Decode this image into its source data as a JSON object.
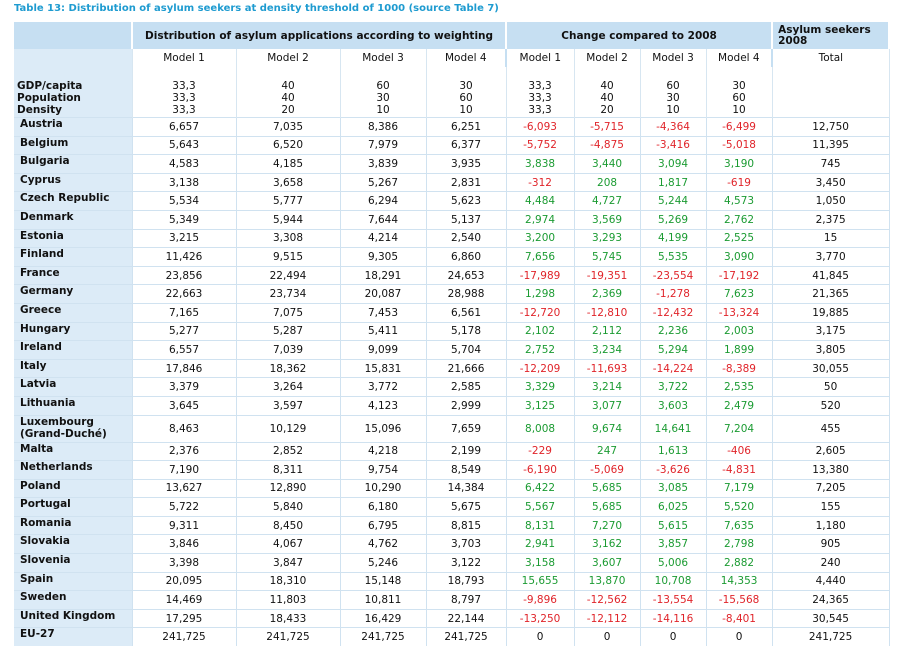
{
  "title": "Table 13: Distribution of asylum seekers at density threshold of 1000 (source Table 7)",
  "header_groups": {
    "distribution": "Distribution of asylum applications according to weighting",
    "change": "Change compared to 2008",
    "asylum": "Asylum seekers 2008"
  },
  "sub_headers": [
    "Model 1",
    "Model 2",
    "Model 3",
    "Model 4",
    "Model 1",
    "Model 2",
    "Model 3",
    "Model 4",
    "Total"
  ],
  "weights": {
    "labels": [
      "GDP/capita",
      "Population",
      "Density"
    ],
    "model1": [
      "33,3",
      "33,3",
      "33,3"
    ],
    "model2": [
      "40",
      "40",
      "20"
    ],
    "model3": [
      "60",
      "30",
      "10"
    ],
    "model4": [
      "30",
      "60",
      "10"
    ]
  },
  "rows": [
    {
      "country": "Austria",
      "dist": [
        "6,657",
        "7,035",
        "8,386",
        "6,251"
      ],
      "change": [
        "-6,093",
        "-5,715",
        "-4,364",
        "-6,499"
      ],
      "total": "12,750"
    },
    {
      "country": "Belgium",
      "dist": [
        "5,643",
        "6,520",
        "7,979",
        "6,377"
      ],
      "change": [
        "-5,752",
        "-4,875",
        "-3,416",
        "-5,018"
      ],
      "total": "11,395"
    },
    {
      "country": "Bulgaria",
      "dist": [
        "4,583",
        "4,185",
        "3,839",
        "3,935"
      ],
      "change": [
        "3,838",
        "3,440",
        "3,094",
        "3,190"
      ],
      "total": "745"
    },
    {
      "country": "Cyprus",
      "dist": [
        "3,138",
        "3,658",
        "5,267",
        "2,831"
      ],
      "change": [
        "-312",
        "208",
        "1,817",
        "-619"
      ],
      "total": "3,450"
    },
    {
      "country": "Czech Republic",
      "dist": [
        "5,534",
        "5,777",
        "6,294",
        "5,623"
      ],
      "change": [
        "4,484",
        "4,727",
        "5,244",
        "4,573"
      ],
      "total": "1,050"
    },
    {
      "country": "Denmark",
      "dist": [
        "5,349",
        "5,944",
        "7,644",
        "5,137"
      ],
      "change": [
        "2,974",
        "3,569",
        "5,269",
        "2,762"
      ],
      "total": "2,375"
    },
    {
      "country": "Estonia",
      "dist": [
        "3,215",
        "3,308",
        "4,214",
        "2,540"
      ],
      "change": [
        "3,200",
        "3,293",
        "4,199",
        "2,525"
      ],
      "total": "15"
    },
    {
      "country": "Finland",
      "dist": [
        "11,426",
        "9,515",
        "9,305",
        "6,860"
      ],
      "change": [
        "7,656",
        "5,745",
        "5,535",
        "3,090"
      ],
      "total": "3,770"
    },
    {
      "country": "France",
      "dist": [
        "23,856",
        "22,494",
        "18,291",
        "24,653"
      ],
      "change": [
        "-17,989",
        "-19,351",
        "-23,554",
        "-17,192"
      ],
      "total": "41,845"
    },
    {
      "country": "Germany",
      "dist": [
        "22,663",
        "23,734",
        "20,087",
        "28,988"
      ],
      "change": [
        "1,298",
        "2,369",
        "-1,278",
        "7,623"
      ],
      "total": "21,365"
    },
    {
      "country": "Greece",
      "dist": [
        "7,165",
        "7,075",
        "7,453",
        "6,561"
      ],
      "change": [
        "-12,720",
        "-12,810",
        "-12,432",
        "-13,324"
      ],
      "total": "19,885"
    },
    {
      "country": "Hungary",
      "dist": [
        "5,277",
        "5,287",
        "5,411",
        "5,178"
      ],
      "change": [
        "2,102",
        "2,112",
        "2,236",
        "2,003"
      ],
      "total": "3,175"
    },
    {
      "country": "Ireland",
      "dist": [
        "6,557",
        "7,039",
        "9,099",
        "5,704"
      ],
      "change": [
        "2,752",
        "3,234",
        "5,294",
        "1,899"
      ],
      "total": "3,805"
    },
    {
      "country": "Italy",
      "dist": [
        "17,846",
        "18,362",
        "15,831",
        "21,666"
      ],
      "change": [
        "-12,209",
        "-11,693",
        "-14,224",
        "-8,389"
      ],
      "total": "30,055"
    },
    {
      "country": "Latvia",
      "dist": [
        "3,379",
        "3,264",
        "3,772",
        "2,585"
      ],
      "change": [
        "3,329",
        "3,214",
        "3,722",
        "2,535"
      ],
      "total": "50"
    },
    {
      "country": "Lithuania",
      "dist": [
        "3,645",
        "3,597",
        "4,123",
        "2,999"
      ],
      "change": [
        "3,125",
        "3,077",
        "3,603",
        "2,479"
      ],
      "total": "520"
    },
    {
      "country": "Luxembourg (Grand-Duché)",
      "dist": [
        "8,463",
        "10,129",
        "15,096",
        "7,659"
      ],
      "change": [
        "8,008",
        "9,674",
        "14,641",
        "7,204"
      ],
      "total": "455"
    },
    {
      "country": "Malta",
      "dist": [
        "2,376",
        "2,852",
        "4,218",
        "2,199"
      ],
      "change": [
        "-229",
        "247",
        "1,613",
        "-406"
      ],
      "total": "2,605"
    },
    {
      "country": "Netherlands",
      "dist": [
        "7,190",
        "8,311",
        "9,754",
        "8,549"
      ],
      "change": [
        "-6,190",
        "-5,069",
        "-3,626",
        "-4,831"
      ],
      "total": "13,380"
    },
    {
      "country": "Poland",
      "dist": [
        "13,627",
        "12,890",
        "10,290",
        "14,384"
      ],
      "change": [
        "6,422",
        "5,685",
        "3,085",
        "7,179"
      ],
      "total": "7,205"
    },
    {
      "country": "Portugal",
      "dist": [
        "5,722",
        "5,840",
        "6,180",
        "5,675"
      ],
      "change": [
        "5,567",
        "5,685",
        "6,025",
        "5,520"
      ],
      "total": "155"
    },
    {
      "country": "Romania",
      "dist": [
        "9,311",
        "8,450",
        "6,795",
        "8,815"
      ],
      "change": [
        "8,131",
        "7,270",
        "5,615",
        "7,635"
      ],
      "total": "1,180"
    },
    {
      "country": "Slovakia",
      "dist": [
        "3,846",
        "4,067",
        "4,762",
        "3,703"
      ],
      "change": [
        "2,941",
        "3,162",
        "3,857",
        "2,798"
      ],
      "total": "905"
    },
    {
      "country": "Slovenia",
      "dist": [
        "3,398",
        "3,847",
        "5,246",
        "3,122"
      ],
      "change": [
        "3,158",
        "3,607",
        "5,006",
        "2,882"
      ],
      "total": "240"
    },
    {
      "country": "Spain",
      "dist": [
        "20,095",
        "18,310",
        "15,148",
        "18,793"
      ],
      "change": [
        "15,655",
        "13,870",
        "10,708",
        "14,353"
      ],
      "total": "4,440"
    },
    {
      "country": "Sweden",
      "dist": [
        "14,469",
        "11,803",
        "10,811",
        "8,797"
      ],
      "change": [
        "-9,896",
        "-12,562",
        "-13,554",
        "-15,568"
      ],
      "total": "24,365"
    },
    {
      "country": "United Kingdom",
      "dist": [
        "17,295",
        "18,433",
        "16,429",
        "22,144"
      ],
      "change": [
        "-13,250",
        "-12,112",
        "-14,116",
        "-8,401"
      ],
      "total": "30,545"
    },
    {
      "country": "EU-27",
      "dist": [
        "241,725",
        "241,725",
        "241,725",
        "241,725"
      ],
      "change": [
        "0",
        "0",
        "0",
        "0"
      ],
      "total": "241,725"
    }
  ],
  "colors": {
    "title": "#1e9bd0",
    "header_bg": "#c6dff2",
    "country_bg": "#dcebf7",
    "negative": "#e0242a",
    "positive": "#1b9b32"
  }
}
